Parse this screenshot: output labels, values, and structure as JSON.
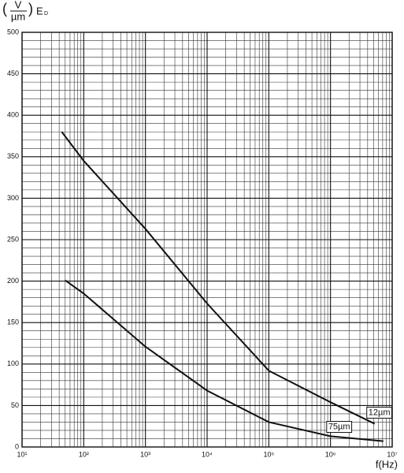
{
  "chart_data": {
    "type": "line",
    "y_label": {
      "numerator": "V",
      "denominator": "µm",
      "quantity": "E",
      "subscript": "D"
    },
    "x_label": "f(Hz)",
    "x_scale": "log",
    "xlim": [
      10,
      10000000
    ],
    "ylim": [
      0,
      500
    ],
    "xticks": [
      {
        "value": 10,
        "label": "10¹"
      },
      {
        "value": 100,
        "label": "10²"
      },
      {
        "value": 1000,
        "label": "10³"
      },
      {
        "value": 10000,
        "label": "10⁴"
      },
      {
        "value": 100000,
        "label": "10⁵"
      },
      {
        "value": 1000000,
        "label": "10⁶"
      },
      {
        "value": 10000000,
        "label": "10⁷"
      }
    ],
    "yticks": [
      0,
      50,
      100,
      150,
      200,
      250,
      300,
      350,
      400,
      450,
      500
    ],
    "grid": true,
    "minor_grid": true,
    "series": [
      {
        "name": "12µm",
        "color": "#111111",
        "x": [
          44,
          100,
          1000,
          10000,
          100000,
          1000000,
          5200000
        ],
        "values": [
          380,
          345,
          263,
          173,
          92,
          54,
          28
        ]
      },
      {
        "name": "75µm",
        "color": "#111111",
        "x": [
          50,
          100,
          1000,
          10000,
          100000,
          1000000,
          7200000
        ],
        "values": [
          201,
          185,
          121,
          68,
          30,
          13,
          7
        ]
      }
    ]
  }
}
